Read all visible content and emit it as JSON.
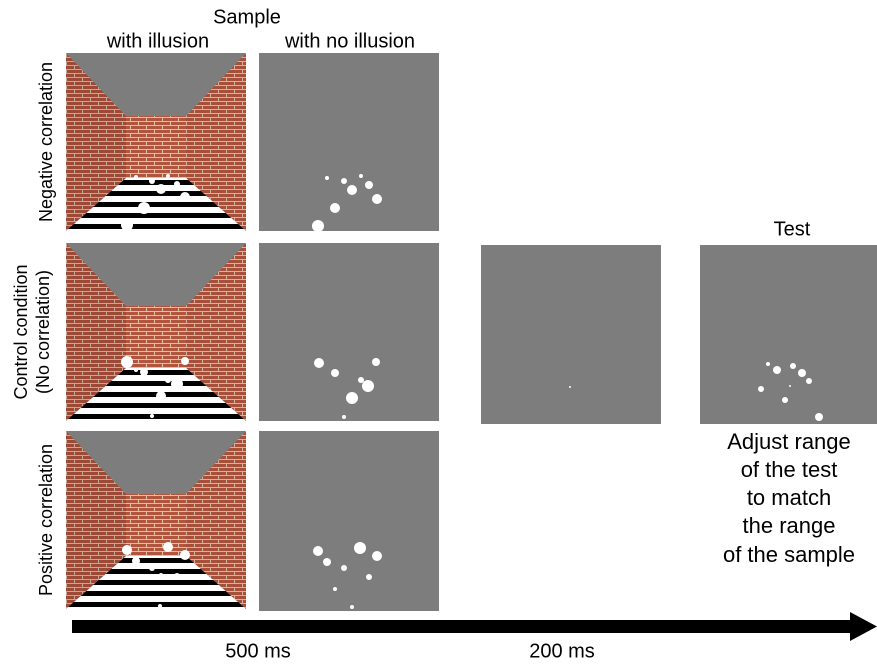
{
  "header": {
    "title": "Sample",
    "columns": [
      "with illusion",
      "with no illusion"
    ]
  },
  "rows": [
    {
      "lines": [
        "Negative correlation"
      ]
    },
    {
      "lines": [
        "Control condition",
        "(No correlation)"
      ]
    },
    {
      "lines": [
        "Positive correlation"
      ]
    }
  ],
  "test": {
    "title": "Test",
    "instructions": [
      "Adjust range",
      "of the test",
      "to match",
      "the range",
      "of the sample"
    ]
  },
  "timeline": {
    "durations": [
      "500 ms",
      "200 ms"
    ]
  }
}
